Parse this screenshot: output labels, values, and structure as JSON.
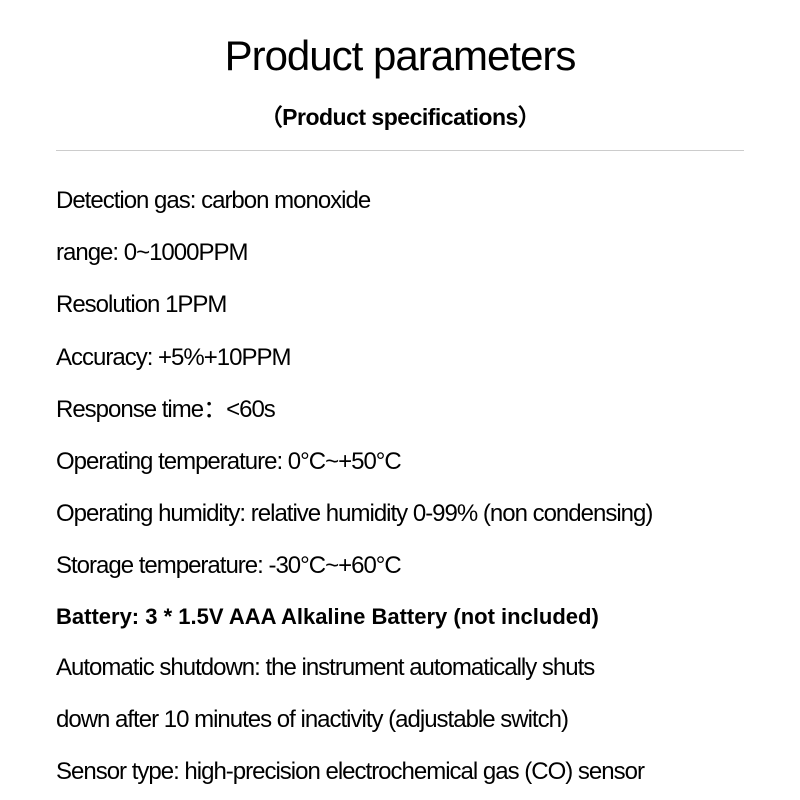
{
  "title": "Product parameters",
  "subtitle": "（Product specifications）",
  "specs": {
    "detection_gas": "Detection gas: carbon monoxide",
    "range": "range: 0~1000PPM",
    "resolution": "Resolution 1PPM",
    "accuracy": "Accuracy: +5%+10PPM",
    "response_time": "Response time：<60s",
    "operating_temperature": "Operating temperature: 0°C~+50°C",
    "operating_humidity": "Operating humidity: relative humidity 0-99% (non condensing)",
    "storage_temperature": "Storage temperature: -30°C~+60°C",
    "battery": "Battery: 3 * 1.5V AAA Alkaline Battery (not included)",
    "auto_shutdown_line1": "Automatic shutdown: the instrument automatically shuts",
    "auto_shutdown_line2": "down after 10 minutes of inactivity (adjustable switch)",
    "sensor_type": "Sensor type: high-precision electrochemical gas (CO) sensor"
  },
  "styling": {
    "background_color": "#ffffff",
    "text_color": "#000000",
    "divider_color": "#cccccc",
    "title_fontsize": 42,
    "title_weight": 300,
    "subtitle_fontsize": 23,
    "subtitle_weight": 700,
    "spec_fontsize": 24,
    "spec_weight": 400,
    "bold_spec_fontsize": 22,
    "bold_spec_weight": 700,
    "line_spacing": 21
  }
}
